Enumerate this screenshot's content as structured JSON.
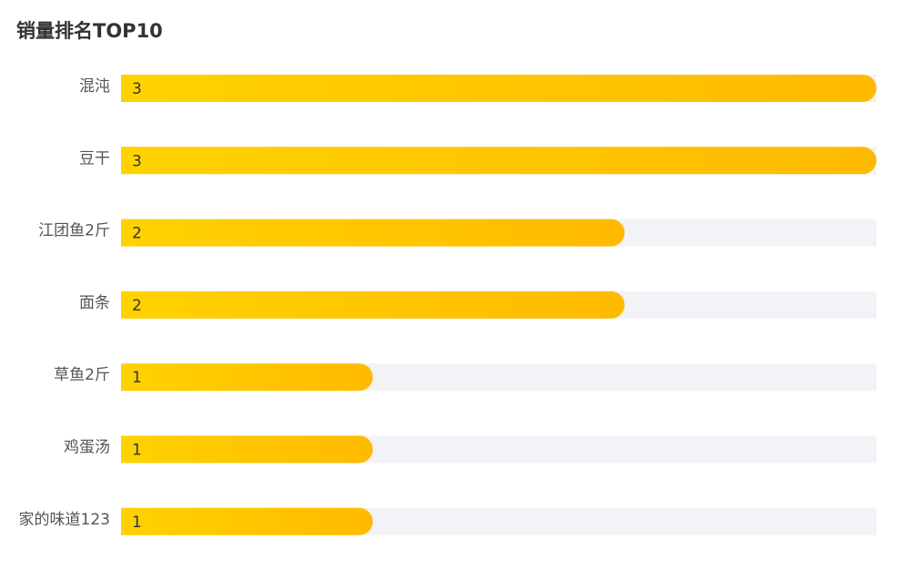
{
  "chart_data": {
    "type": "bar",
    "orientation": "horizontal",
    "title": "销量排名TOP10",
    "categories": [
      "混沌",
      "豆干",
      "江团鱼2斤",
      "面条",
      "草鱼2斤",
      "鸡蛋汤",
      "家的味道123"
    ],
    "values": [
      3,
      3,
      2,
      2,
      1,
      1,
      1
    ],
    "xlim": [
      0,
      3
    ],
    "grid": false,
    "colors": {
      "bar_start": "#FFD200",
      "bar_end": "#FFBA00",
      "track": "#F2F3F7"
    }
  }
}
